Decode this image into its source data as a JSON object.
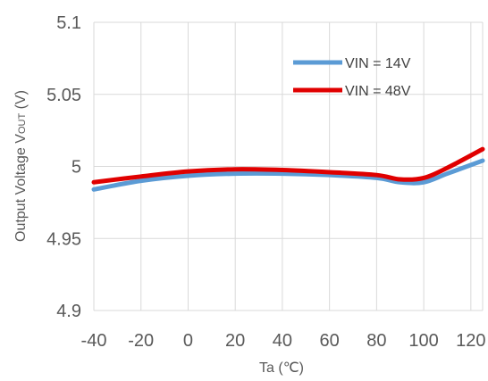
{
  "chart_data": {
    "type": "line",
    "title": "",
    "xlabel": "Ta (℃)",
    "ylabel": "Output Voltage V",
    "ylabel_sub": "OUT",
    "ylabel_unit": " (V)",
    "xlim": [
      -40,
      125
    ],
    "ylim": [
      4.9,
      5.1
    ],
    "xticks": [
      -40,
      -20,
      0,
      20,
      40,
      60,
      80,
      100,
      120
    ],
    "xtick_labels": [
      "-40",
      "-20",
      "0",
      "20",
      "40",
      "60",
      "80",
      "100",
      "120"
    ],
    "yticks": [
      4.9,
      4.95,
      5,
      5.05,
      5.1
    ],
    "ytick_labels": [
      "4.9",
      "4.95",
      "5",
      "5.05",
      "5.1"
    ],
    "grid": "vertical",
    "legend_position": "top-right",
    "series": [
      {
        "name": "VIN  = 14V",
        "color": "#5B9BD5",
        "x": [
          -40,
          -20,
          0,
          20,
          40,
          60,
          80,
          90,
          100,
          110,
          125
        ],
        "y": [
          4.984,
          4.99,
          4.9935,
          4.995,
          4.995,
          4.994,
          4.992,
          4.989,
          4.989,
          4.995,
          5.004
        ]
      },
      {
        "name": "VIN  = 48V",
        "color": "#E00000",
        "x": [
          -40,
          -20,
          0,
          20,
          40,
          60,
          80,
          90,
          100,
          110,
          125
        ],
        "y": [
          4.989,
          4.993,
          4.9965,
          4.998,
          4.9975,
          4.996,
          4.994,
          4.991,
          4.992,
          4.999,
          5.012
        ]
      }
    ]
  }
}
